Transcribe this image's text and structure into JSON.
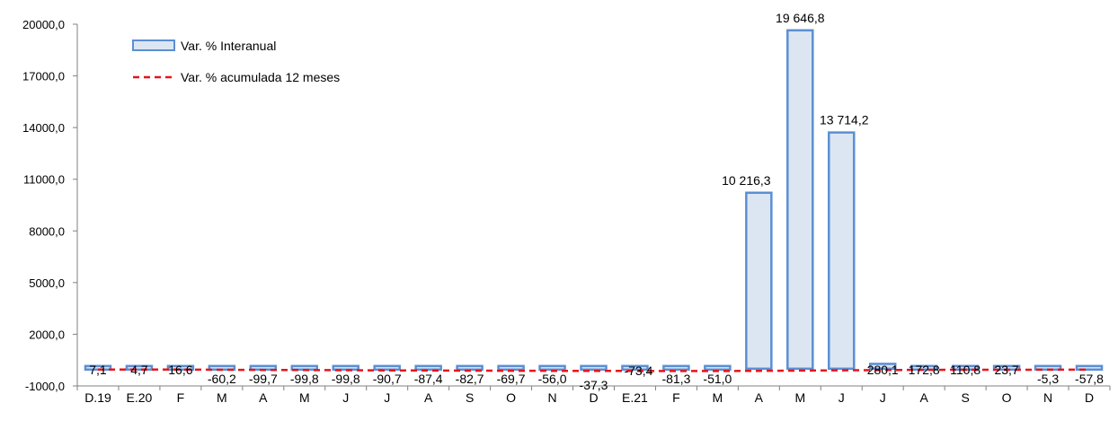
{
  "chart_data": {
    "type": "bar",
    "title": "",
    "xlabel": "",
    "ylabel": "",
    "ylim": [
      -1000,
      20000
    ],
    "yticks": [
      -1000,
      2000,
      5000,
      8000,
      11000,
      14000,
      17000,
      20000
    ],
    "ytick_labels": [
      "-1000,0",
      "2000,0",
      "5000,0",
      "8000,0",
      "11000,0",
      "14000,0",
      "17000,0",
      "20000,0"
    ],
    "categories": [
      "D.19",
      "E.20",
      "F",
      "M",
      "A",
      "M",
      "J",
      "J",
      "A",
      "S",
      "O",
      "N",
      "D",
      "E.21",
      "F",
      "M",
      "A",
      "M",
      "J",
      "J",
      "A",
      "S",
      "O",
      "N",
      "D"
    ],
    "legend_position": "top-left",
    "grid": false,
    "series": [
      {
        "name": "Var. % Interanual",
        "kind": "bar",
        "color": "#5b8fd4",
        "fill": "#dce6f2",
        "values": [
          7.1,
          4.7,
          16.6,
          -60.2,
          -99.7,
          -99.8,
          -99.8,
          -90.7,
          -87.4,
          -82.7,
          -69.7,
          -56.0,
          -37.3,
          -73.4,
          -81.3,
          -51.0,
          10216.3,
          19646.8,
          13714.2,
          280.1,
          172.8,
          110.8,
          23.7,
          -5.3,
          -57.8
        ],
        "labels": [
          "7,1",
          "4,7",
          "16,6",
          "-60,2",
          "-99,7",
          "-99,8",
          "-99,8",
          "-90,7",
          "-87,4",
          "-82,7",
          "-69,7",
          "-56,0",
          "-37,3",
          "-73,4",
          "-81,3",
          "-51,0",
          "10 216,3",
          "19 646,8",
          "13 714,2",
          "280,1",
          "172,8",
          "110,8",
          "23,7",
          "-5,3",
          "-57,8"
        ]
      },
      {
        "name": "Var. % acumulada 12 meses",
        "kind": "line",
        "color": "#e8131b",
        "style": "dashed",
        "values": [
          -2,
          -2,
          1,
          -8,
          -18,
          -28,
          -38,
          -46,
          -53,
          -60,
          -65,
          -70,
          -73,
          -80,
          -84,
          -84,
          -72,
          -55,
          -40,
          -25,
          -15,
          -10,
          -8,
          -5,
          -3
        ]
      }
    ]
  }
}
